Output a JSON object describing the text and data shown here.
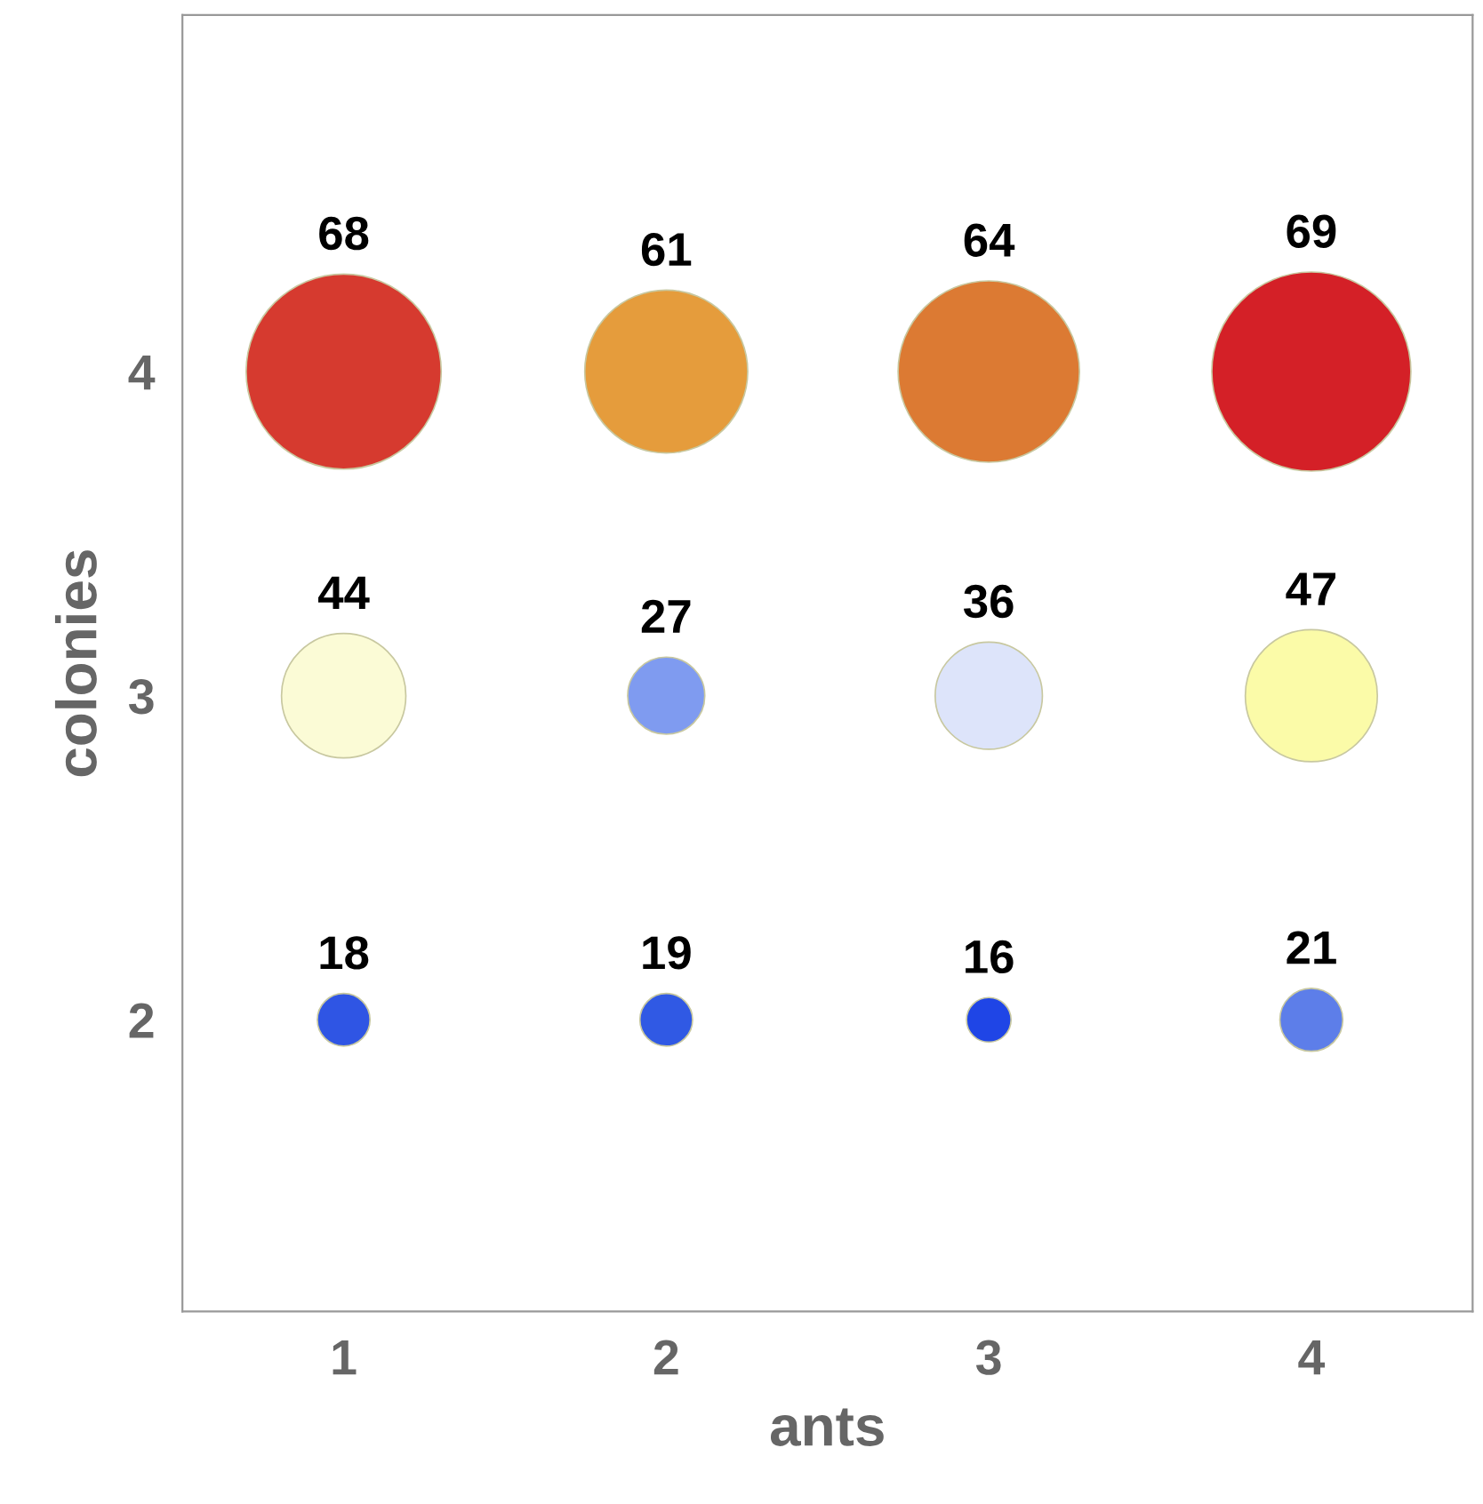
{
  "chart_data": {
    "type": "bubble",
    "xlabel": "ants",
    "ylabel": "colonies",
    "x": [
      1,
      2,
      3,
      4,
      1,
      2,
      3,
      4,
      1,
      2,
      3,
      4
    ],
    "values": [
      4,
      4,
      4,
      4,
      3,
      3,
      3,
      3,
      2,
      2,
      2,
      2
    ],
    "sizes": [
      0.96,
      0.67,
      0.83,
      1,
      0.39,
      0.15,
      0.29,
      0.44,
      0.07,
      0.07,
      0.05,
      0.1
    ],
    "annotations": [
      {
        "text": "68",
        "x": 1,
        "y": 4
      },
      {
        "text": "61",
        "x": 2,
        "y": 4
      },
      {
        "text": "64",
        "x": 3,
        "y": 4
      },
      {
        "text": "69",
        "x": 4,
        "y": 4
      },
      {
        "text": "44",
        "x": 1,
        "y": 3
      },
      {
        "text": "27",
        "x": 2,
        "y": 3
      },
      {
        "text": "36",
        "x": 3,
        "y": 3
      },
      {
        "text": "47",
        "x": 4,
        "y": 3
      },
      {
        "text": "18",
        "x": 1,
        "y": 2
      },
      {
        "text": "19",
        "x": 2,
        "y": 2
      },
      {
        "text": "16",
        "x": 3,
        "y": 2
      },
      {
        "text": "21",
        "x": 4,
        "y": 2
      }
    ],
    "colors": [
      "#d63a2f",
      "#e59c3c",
      "#dc7a33",
      "#d42027",
      "#fbfbd6",
      "#7f9bf0",
      "#dde4fa",
      "#fbfba8",
      "#2f55e4",
      "#3059e4",
      "#1f45e6",
      "#5d7ee9"
    ],
    "xlim": [
      0.5,
      4.5
    ],
    "ylim": [
      1.1,
      5.1
    ],
    "xticks": [
      1,
      2,
      3,
      4
    ],
    "yticks": [
      2,
      3,
      4
    ],
    "grid": false,
    "legend": false
  }
}
